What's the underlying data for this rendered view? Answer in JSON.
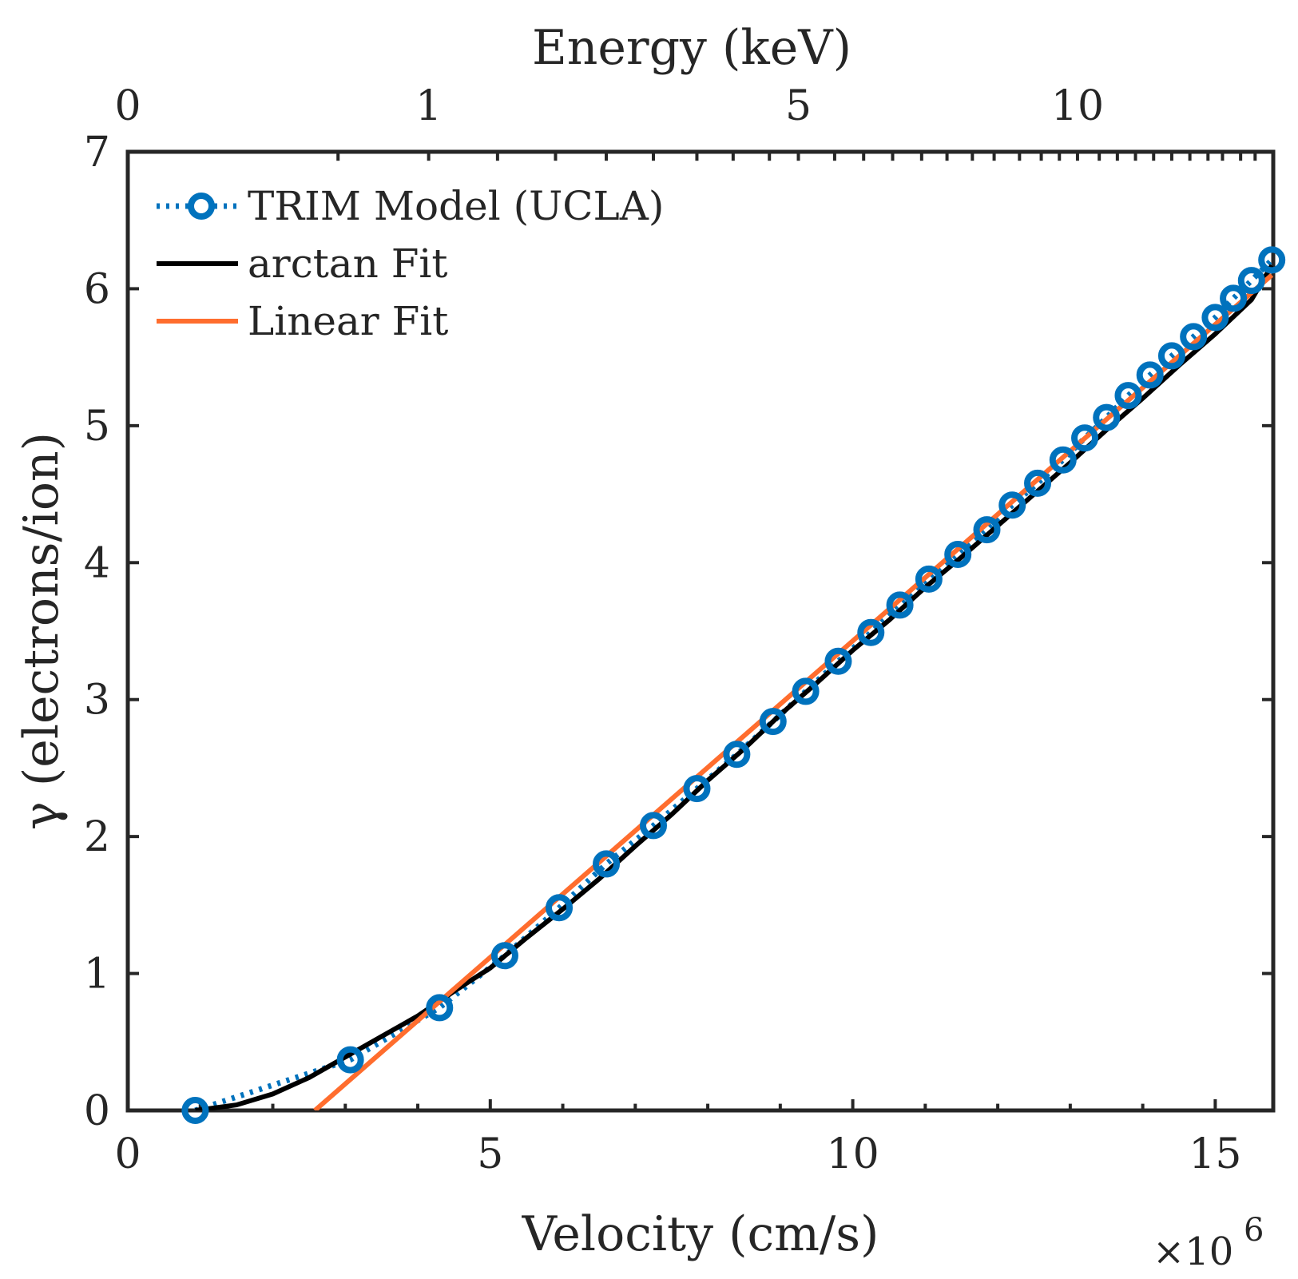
{
  "chart_data": {
    "type": "line",
    "xlabel": "Velocity (cm/s)",
    "x_exponent_label": "×10",
    "x_exponent_power": "6",
    "x_tick_labels": [
      "0",
      "5",
      "10",
      "15"
    ],
    "xlim": [
      0,
      15.8
    ],
    "ylabel": "γ (electrons/ion)",
    "y_tick_labels": [
      "0",
      "1",
      "2",
      "3",
      "4",
      "5",
      "6",
      "7"
    ],
    "ylim": [
      0,
      7
    ],
    "x2label": "Energy (keV)",
    "x2_ticks": [
      {
        "label": "0",
        "at_velocity": 0
      },
      {
        "label": "1",
        "at_velocity": 4.15
      },
      {
        "label": "5",
        "at_velocity": 9.25
      },
      {
        "label": "10",
        "at_velocity": 13.1
      }
    ],
    "legend": {
      "placement": "top-left"
    },
    "grid": false,
    "series": [
      {
        "name": "TRIM Model (UCLA)",
        "color": "#0072BD",
        "style": "dotted-circles",
        "x": [
          0.93,
          3.07,
          4.3,
          5.2,
          5.95,
          6.6,
          7.25,
          7.85,
          8.4,
          8.9,
          9.35,
          9.8,
          10.25,
          10.65,
          11.05,
          11.45,
          11.85,
          12.2,
          12.55,
          12.9,
          13.2,
          13.5,
          13.8,
          14.1,
          14.4,
          14.7,
          15.0,
          15.25,
          15.5,
          15.78
        ],
        "y": [
          0.0,
          0.37,
          0.75,
          1.13,
          1.48,
          1.8,
          2.08,
          2.35,
          2.6,
          2.84,
          3.06,
          3.28,
          3.49,
          3.69,
          3.88,
          4.06,
          4.24,
          4.42,
          4.58,
          4.75,
          4.91,
          5.06,
          5.22,
          5.37,
          5.51,
          5.65,
          5.79,
          5.93,
          6.06,
          6.21
        ]
      },
      {
        "name": "arctan Fit",
        "color": "#000000",
        "style": "solid",
        "x": [
          0.93,
          1.5,
          2.0,
          2.5,
          3.0,
          3.5,
          4.0,
          4.5,
          5.0,
          5.5,
          6.0,
          6.5,
          7.0,
          7.5,
          8.0,
          8.5,
          9.0,
          9.5,
          10.0,
          10.5,
          11.0,
          11.5,
          12.0,
          12.5,
          13.0,
          13.5,
          14.0,
          14.5,
          15.0,
          15.5,
          15.78
        ],
        "y": [
          0.0,
          0.04,
          0.12,
          0.24,
          0.39,
          0.54,
          0.69,
          0.87,
          1.04,
          1.26,
          1.47,
          1.69,
          1.93,
          2.16,
          2.41,
          2.64,
          2.89,
          3.12,
          3.36,
          3.58,
          3.82,
          4.04,
          4.27,
          4.5,
          4.73,
          4.97,
          5.2,
          5.44,
          5.67,
          5.92,
          6.17
        ]
      },
      {
        "name": "Linear Fit",
        "color": "#FF6D2E",
        "style": "solid",
        "x": [
          2.58,
          15.78
        ],
        "y": [
          0.0,
          6.1
        ]
      }
    ]
  }
}
